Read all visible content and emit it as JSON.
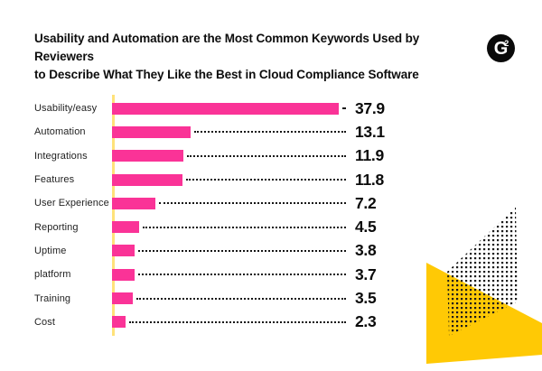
{
  "header": {
    "title_lines": [
      "Usability and Automation are the Most Common Keywords Used by Reviewers",
      "to Describe What They Like the Best in Cloud Compliance Software"
    ],
    "logo_letter": "G",
    "logo_superscript": "2"
  },
  "colors": {
    "bar_pink": "#FA3397",
    "axis_yellow": "#FFE27A",
    "accent_yellow": "#FFC905",
    "text_black": "#0d0d0d",
    "dot_black": "#1a1a1a"
  },
  "chart_data": {
    "type": "bar",
    "orientation": "horizontal",
    "title": "Usability and Automation are the Most Common Keywords Used by Reviewers to Describe What They Like the Best in Cloud Compliance Software",
    "categories": [
      "Usability/easy",
      "Automation",
      "Integrations",
      "Features",
      "User Experience",
      "Reporting",
      "Uptime",
      "platform",
      "Training",
      "Cost"
    ],
    "values": [
      37.9,
      13.1,
      11.9,
      11.8,
      7.2,
      4.5,
      3.8,
      3.7,
      3.5,
      2.3
    ],
    "value_labels": [
      "37.9",
      "13.1",
      "11.9",
      "11.8",
      "7.2",
      "4.5",
      "3.8",
      "3.7",
      "3.5",
      "2.3"
    ],
    "xlabel": "",
    "ylabel": "",
    "xlim": [
      0,
      38
    ],
    "grid": false,
    "legend": null,
    "bar_color": "#FA3397",
    "leader_style": "dotted"
  }
}
